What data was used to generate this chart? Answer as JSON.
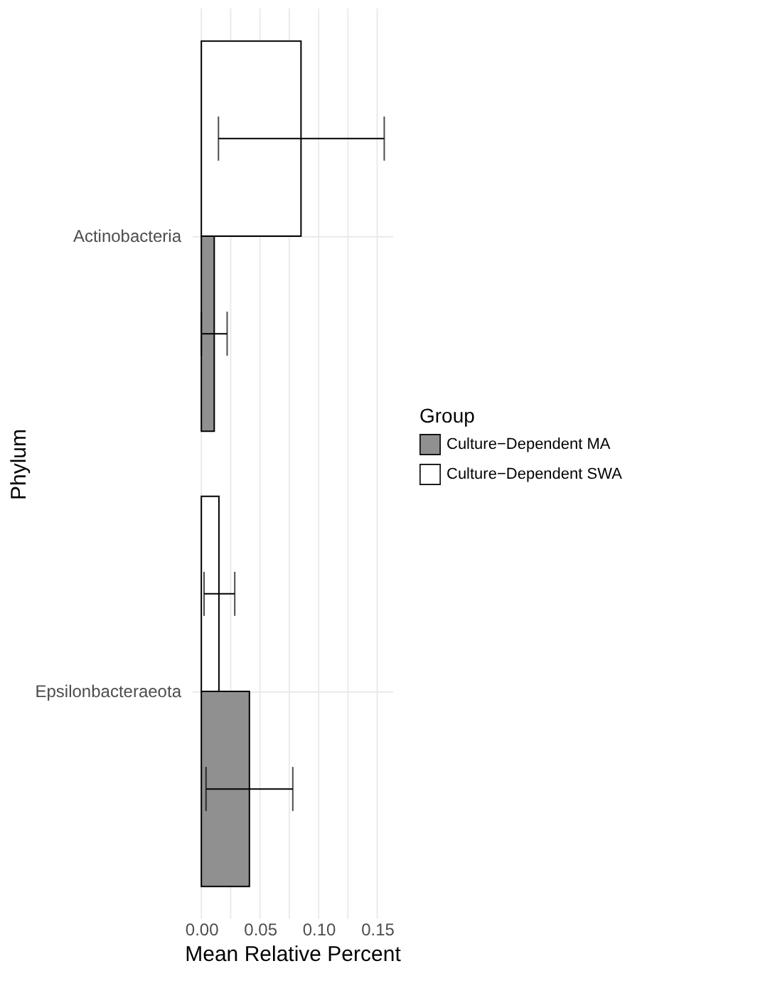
{
  "chart_data": {
    "type": "bar",
    "orientation": "horizontal",
    "xlabel": "Mean Relative Percent",
    "ylabel": "Phylum",
    "legend_title": "Group",
    "categories": [
      "Actinobacteria",
      "Epsilonbacteraeota"
    ],
    "series": [
      {
        "name": "Culture−Dependent MA",
        "color": "#909090",
        "values": [
          0.011,
          0.041
        ],
        "errors": [
          [
            0.0,
            0.022
          ],
          [
            0.004,
            0.078
          ]
        ]
      },
      {
        "name": "Culture−Dependent SWA",
        "color": "#ffffff",
        "values": [
          0.085,
          0.015
        ],
        "errors": [
          [
            0.0146,
            0.156
          ],
          [
            0.0023,
            0.0285
          ]
        ]
      }
    ],
    "xlim": [
      -0.008,
      0.163
    ],
    "xticks": [
      {
        "value": 0,
        "label": "0.00"
      },
      {
        "value": 0.025,
        "label": null
      },
      {
        "value": 0.05,
        "label": "0.05"
      },
      {
        "value": 0.075,
        "label": null
      },
      {
        "value": 0.1,
        "label": "0.10"
      },
      {
        "value": 0.125,
        "label": null
      },
      {
        "value": 0.15,
        "label": "0.15"
      }
    ],
    "grid": true,
    "legend": "right"
  }
}
